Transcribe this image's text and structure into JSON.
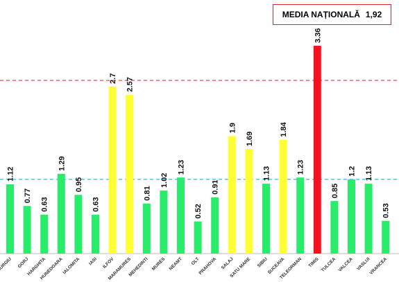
{
  "legend": {
    "label": "MEDIA NAȚIONALĂ",
    "value": "1,92"
  },
  "colors": {
    "green": "#28ec6a",
    "yellow": "#ffff33",
    "red": "#f5121e",
    "national_line": "#e8323a",
    "reference_line": "#34b6ee"
  },
  "chart_data": {
    "type": "bar",
    "categories": [
      "GIURGIU",
      "GORJ",
      "HARGHITA",
      "HUNEDOARA",
      "IALOMITA",
      "IASI",
      "ILFOV",
      "MARAMURES",
      "MEHEDINTI",
      "MURES",
      "NEAMT",
      "OLT",
      "PRAHOVA",
      "SALAJ",
      "SATU MARE",
      "SIBIU",
      "SUCEAVA",
      "TELEORMAN",
      "TIMIS",
      "TULCEA",
      "VALCEA",
      "VASLUI",
      "VRANCEA"
    ],
    "category_labels": [
      "GIURGIU",
      "GORJ",
      "HARGHITA",
      "HUNEDOARA",
      "IALOMITA",
      "IASI",
      "ILFOV",
      "MARAMURES",
      "MEHEDINTI",
      "MURES",
      "NEAMT",
      "OLT",
      "PRAHOVA",
      "SALAJ",
      "SATU MARE",
      "SIBIU",
      "SUCEAVA",
      "TELEORMAN",
      "TIMIS",
      "TULCEA",
      "VALCEA",
      "VASLUI",
      "VRANCEA"
    ],
    "values": [
      1.12,
      0.77,
      0.63,
      1.29,
      0.95,
      0.63,
      2.7,
      2.57,
      0.81,
      1.02,
      1.23,
      0.52,
      0.91,
      1.9,
      1.69,
      1.13,
      1.84,
      1.23,
      3.36,
      0.85,
      1.2,
      1.13,
      0.53
    ],
    "value_labels": [
      "1.12",
      "0.77",
      "0.63",
      "1.29",
      "0.95",
      "0.63",
      "2.7",
      "2.57",
      "0.81",
      "1.02",
      "1.23",
      "0.52",
      "0.91",
      "1.9",
      "1.69",
      "1.13",
      "1.84",
      "1.23",
      "3.36",
      "0.85",
      "1.2",
      "1.13",
      "0.53"
    ],
    "bar_colors": [
      "green",
      "green",
      "green",
      "green",
      "green",
      "green",
      "yellow",
      "yellow",
      "green",
      "green",
      "green",
      "green",
      "green",
      "yellow",
      "yellow",
      "green",
      "yellow",
      "green",
      "red",
      "green",
      "green",
      "green",
      "green"
    ],
    "reference_lines": [
      {
        "value": 2.8,
        "style": "dashed",
        "color": "red"
      },
      {
        "value": 1.2,
        "style": "dashed",
        "color": "blue"
      }
    ],
    "ylim": [
      0,
      4.1
    ],
    "grid": false
  }
}
